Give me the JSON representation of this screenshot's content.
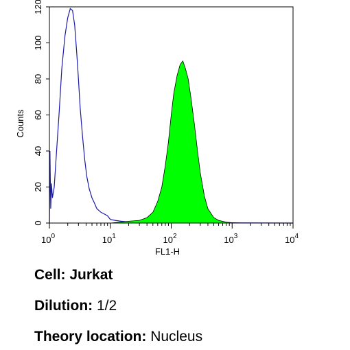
{
  "chart_data": {
    "type": "area",
    "xlabel": "FL1-H",
    "ylabel": "Counts",
    "xscale": "log",
    "xlim": [
      1,
      10000
    ],
    "ylim": [
      0,
      120
    ],
    "yticks": [
      0,
      20,
      40,
      60,
      80,
      100,
      120
    ],
    "xticks": [
      {
        "value": 1,
        "base": "10",
        "exp": "0"
      },
      {
        "value": 10,
        "base": "10",
        "exp": "1"
      },
      {
        "value": 100,
        "base": "10",
        "exp": "2"
      },
      {
        "value": 1000,
        "base": "10",
        "exp": "3"
      },
      {
        "value": 10000,
        "base": "10",
        "exp": "4"
      }
    ],
    "grid": false,
    "series": [
      {
        "style": "outline",
        "color": "#1a1aa8",
        "x": [
          1.0,
          1.02,
          1.05,
          1.08,
          1.12,
          1.2,
          1.3,
          1.45,
          1.6,
          1.8,
          2.0,
          2.2,
          2.4,
          2.6,
          2.8,
          3.0,
          3.2,
          3.5,
          3.8,
          4.1,
          4.5,
          5.0,
          5.5,
          6.0,
          7.0,
          8.0,
          9.0,
          10.0,
          12.0,
          15.0,
          20.0,
          40.0,
          100.0,
          1000.0,
          10000.0
        ],
        "y": [
          0,
          40,
          8,
          22,
          14,
          20,
          38,
          62,
          86,
          104,
          114,
          119,
          118,
          110,
          95,
          80,
          64,
          48,
          35,
          26,
          19,
          14,
          11,
          8,
          6,
          5,
          4,
          2,
          1.5,
          1,
          0.6,
          0.4,
          0.2,
          0.1,
          0
        ]
      },
      {
        "style": "filled",
        "color": "#00ff00",
        "x": [
          1.0,
          10.0,
          20.0,
          30.0,
          40.0,
          50.0,
          60.0,
          70.0,
          80.0,
          90.0,
          100.0,
          110.0,
          125.0,
          140.0,
          155.0,
          170.0,
          190.0,
          210.0,
          240.0,
          270.0,
          300.0,
          350.0,
          400.0,
          500.0,
          600.0,
          800.0,
          1000.0,
          1500.0,
          10000.0
        ],
        "y": [
          0,
          0,
          1,
          1.5,
          3,
          6,
          12,
          20,
          32,
          45,
          60,
          72,
          82,
          88,
          90,
          86,
          80,
          70,
          55,
          40,
          28,
          15,
          8,
          3,
          1.5,
          0.5,
          0.2,
          0,
          0
        ]
      }
    ]
  },
  "info": {
    "cell_label": "Cell: Jurkat",
    "dilution_label": "Dilution:",
    "dilution_value": "1/2",
    "theory_label": "Theory location:",
    "theory_value": "Nucleus"
  }
}
